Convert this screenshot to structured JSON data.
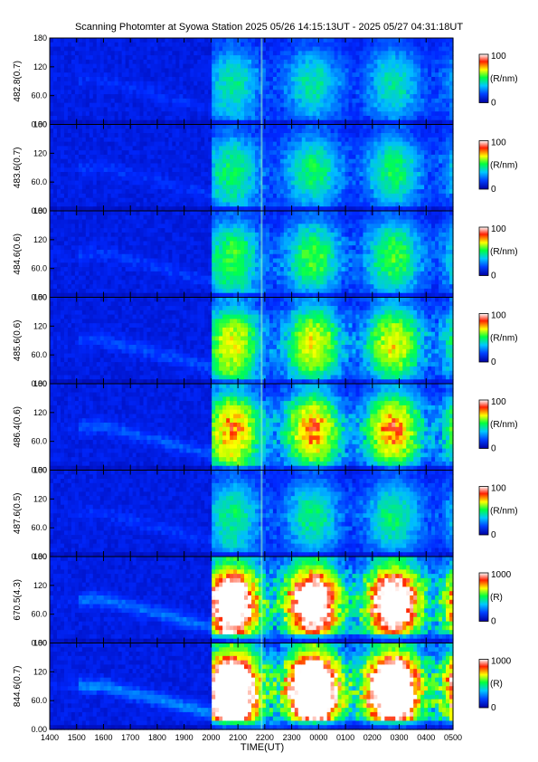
{
  "chart_data": {
    "type": "heatmap",
    "title": "Scanning Photomter at Syowa Station 2025 05/26 14:15:13UT - 2025 05/27 04:31:18UT",
    "xlabel": "TIME(UT)",
    "x_ticks": [
      "1400",
      "1500",
      "1600",
      "1700",
      "1800",
      "1900",
      "2000",
      "2100",
      "2200",
      "2300",
      "0000",
      "0100",
      "0200",
      "0300",
      "0400",
      "0500"
    ],
    "y_ticks": [
      "0.00",
      "60.0",
      "120",
      "180"
    ],
    "ylim": [
      0,
      180
    ],
    "panels": [
      {
        "ylabel": "482.8(0.7)",
        "cb_max": "100",
        "cb_min": "0",
        "unit": "(R/nm)",
        "intensity": 0.25
      },
      {
        "ylabel": "483.6(0.7)",
        "cb_max": "100",
        "cb_min": "0",
        "unit": "(R/nm)",
        "intensity": 0.3
      },
      {
        "ylabel": "484.6(0.6)",
        "cb_max": "100",
        "cb_min": "0",
        "unit": "(R/nm)",
        "intensity": 0.35
      },
      {
        "ylabel": "485.6(0.6)",
        "cb_max": "100",
        "cb_min": "0",
        "unit": "(R/nm)",
        "intensity": 0.5
      },
      {
        "ylabel": "486.4(0.6)",
        "cb_max": "100",
        "cb_min": "0",
        "unit": "(R/nm)",
        "intensity": 0.6
      },
      {
        "ylabel": "487.6(0.5)",
        "cb_max": "100",
        "cb_min": "0",
        "unit": "(R/nm)",
        "intensity": 0.28
      },
      {
        "ylabel": "670.5(4.3)",
        "cb_max": "1000",
        "cb_min": "0",
        "unit": "(R)",
        "intensity": 0.8
      },
      {
        "ylabel": "844.6(0.7)",
        "cb_max": "1000",
        "cb_min": "0",
        "unit": "(R)",
        "intensity": 1.0
      }
    ],
    "colorscale": [
      "#0000a0",
      "#0040ff",
      "#00c0ff",
      "#00ff60",
      "#80ff00",
      "#ffff00",
      "#ff8000",
      "#ff0000",
      "#ffffff"
    ]
  }
}
